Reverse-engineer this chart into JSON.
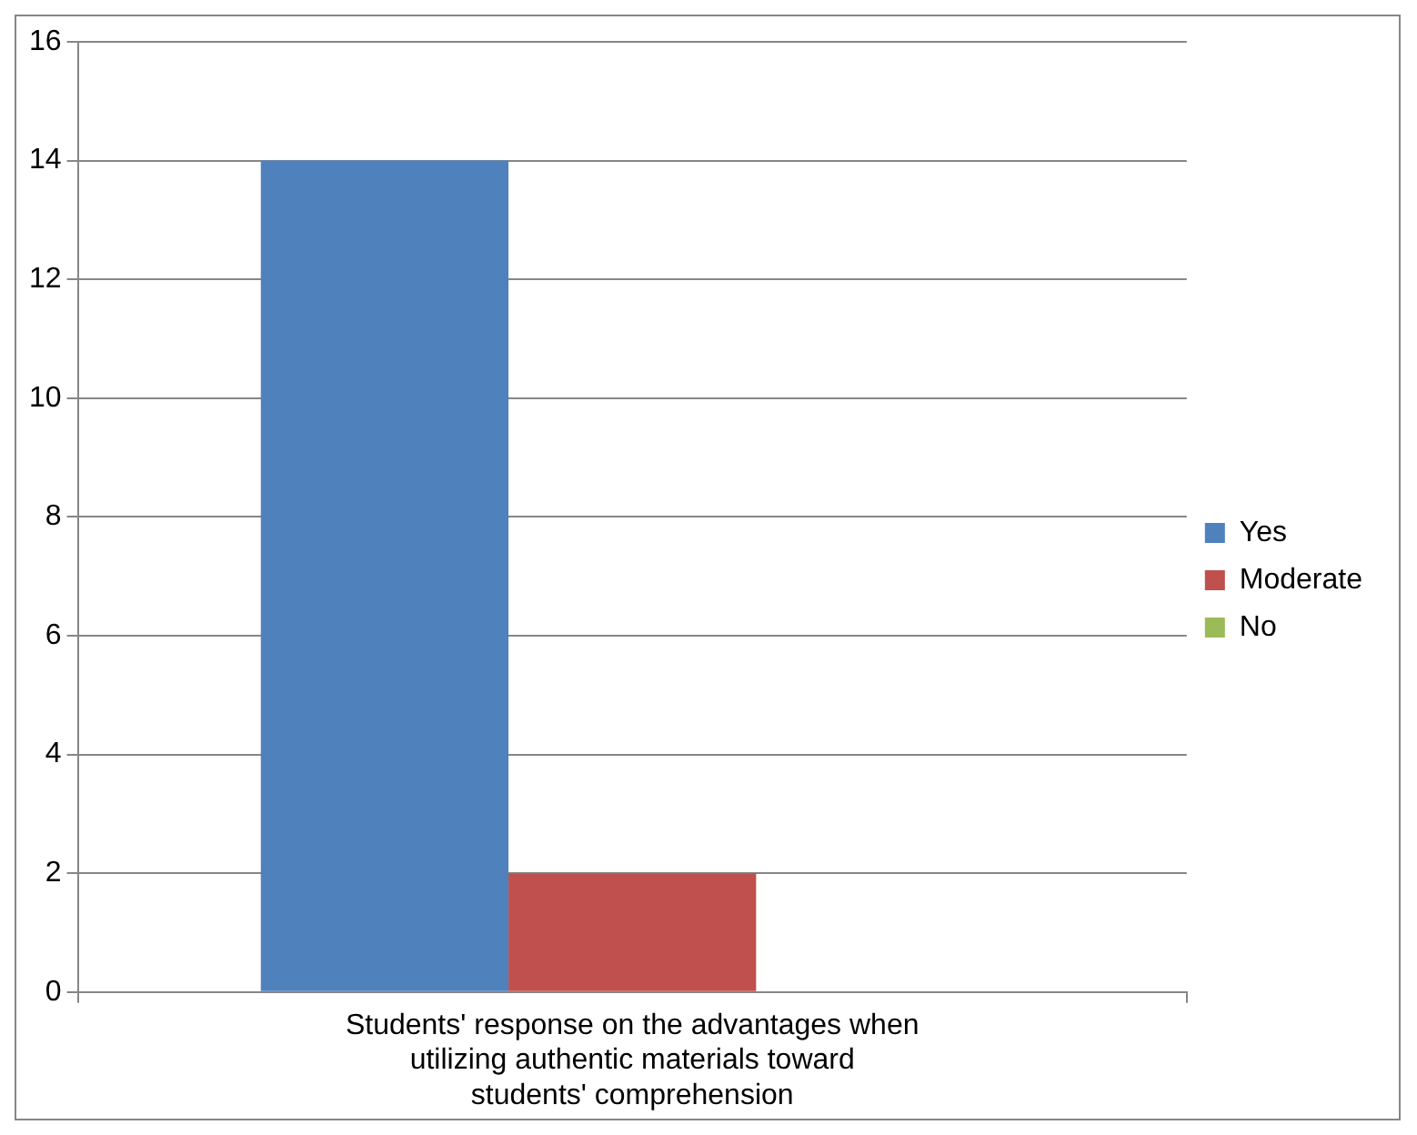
{
  "chart_data": {
    "type": "bar",
    "categories": [
      "Students' response on the advantages when utilizing authentic materials toward students' comprehension"
    ],
    "series": [
      {
        "name": "Yes",
        "color": "#4f81bd",
        "values": [
          14
        ]
      },
      {
        "name": "Moderate",
        "color": "#c0504d",
        "values": [
          2
        ]
      },
      {
        "name": "No",
        "color": "#9bbb59",
        "values": [
          0
        ]
      }
    ],
    "ylim": [
      0,
      16
    ],
    "yticks": [
      0,
      2,
      4,
      6,
      8,
      10,
      12,
      14,
      16
    ],
    "grid": "y",
    "legend": "right"
  }
}
